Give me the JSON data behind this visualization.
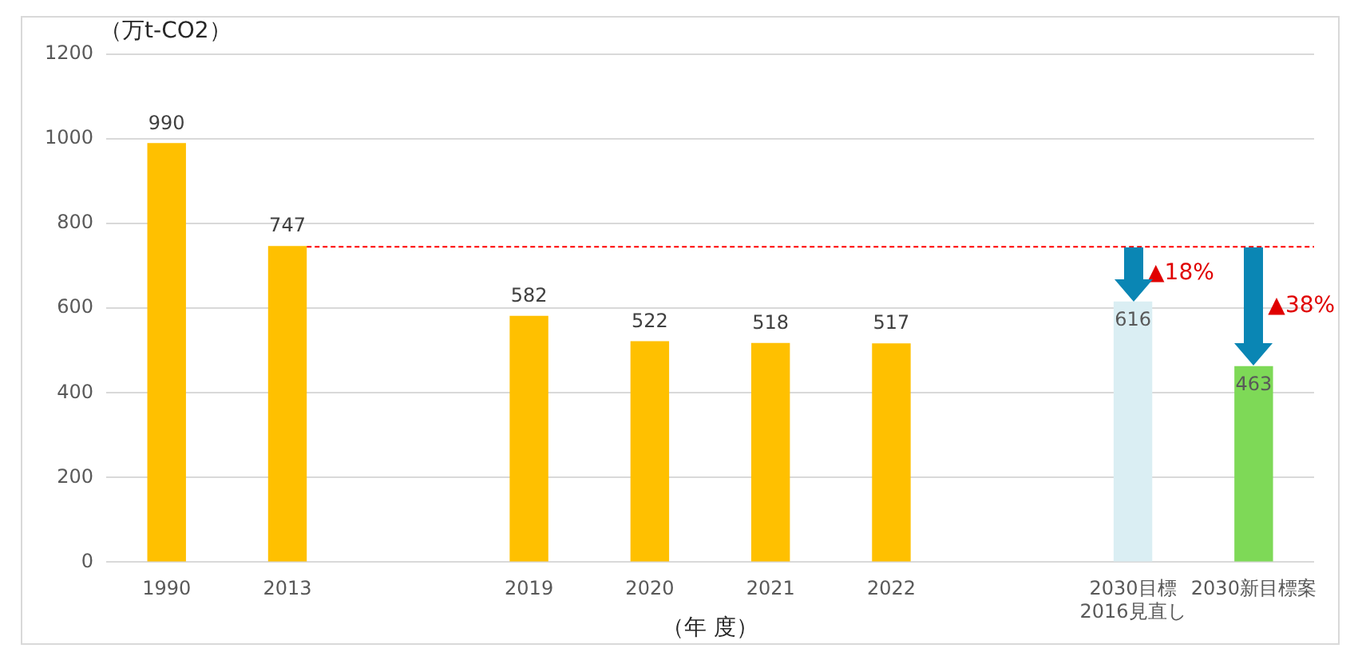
{
  "chart_data": {
    "type": "bar",
    "ylabel": "（万t-CO2）",
    "xlabel": "（年 度）",
    "categories": [
      "1990",
      "2013",
      null,
      "2019",
      "2020",
      "2021",
      "2022",
      null,
      "2030目標\n2016見直し",
      "2030新目標案"
    ],
    "values": [
      990,
      747,
      null,
      582,
      522,
      518,
      517,
      null,
      616,
      463
    ],
    "colors": [
      "#ffc000",
      "#ffc000",
      "#ffc000",
      "#ffc000",
      "#ffc000",
      "#ffc000",
      "#ffc000",
      "#ffc000",
      "#daeef3",
      "#7ed957"
    ],
    "ylim": [
      0,
      1200
    ],
    "yticks": [
      0,
      200,
      400,
      600,
      800,
      1000,
      1200
    ],
    "grid": "y",
    "data_labels": true,
    "ref_lines": [
      {
        "axis": "y",
        "value": 747,
        "color": "#ff0000",
        "line_style": "dashed"
      }
    ],
    "annotations": [
      "▲18%",
      "▲38%"
    ]
  }
}
